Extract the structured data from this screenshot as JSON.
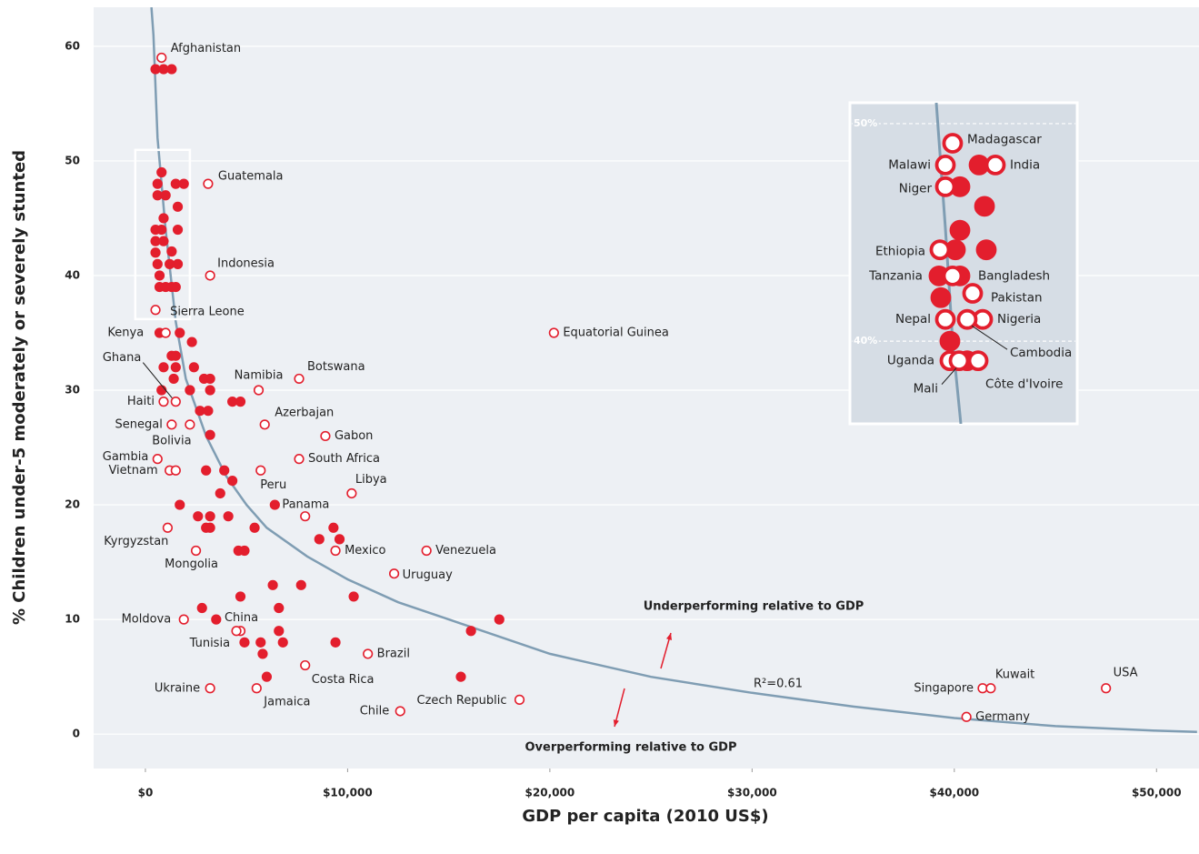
{
  "chart_data": {
    "type": "scatter",
    "xlabel": "GDP per capita (2010 US$)",
    "ylabel": "% Children under-5 moderately or severely stunted",
    "xlim": [
      -2560,
      52100
    ],
    "ylim": [
      -3.0,
      63.4
    ],
    "xticks": [
      {
        "value": 0,
        "label": "$0"
      },
      {
        "value": 10000,
        "label": "$10,000"
      },
      {
        "value": 20000,
        "label": "$20,000"
      },
      {
        "value": 30000,
        "label": "$30,000"
      },
      {
        "value": 40000,
        "label": "$40,000"
      },
      {
        "value": 50000,
        "label": "$50,000"
      }
    ],
    "yticks": [
      0,
      10,
      20,
      30,
      40,
      50,
      60
    ],
    "grid": true,
    "series": [
      {
        "color": "#e31e2d",
        "fill": "#e31e2d",
        "x": [
          6400,
          500,
          900,
          1300,
          800,
          600,
          1500,
          1900,
          600,
          1000,
          1600,
          900,
          500,
          800,
          1600,
          500,
          900,
          1300,
          500,
          600,
          1200,
          1600,
          700,
          700,
          1000,
          1300,
          1500,
          700,
          1700,
          2300,
          1300,
          1500,
          900,
          1500,
          2400,
          1400,
          2900,
          3200,
          800,
          2200,
          3200,
          4300,
          4700,
          2700,
          3100,
          3200,
          3000,
          3900,
          4300,
          3700,
          1700,
          2600,
          3200,
          4100,
          3000,
          3200,
          5400,
          9300,
          8600,
          9600,
          4600,
          4900,
          6300,
          7700,
          4700,
          10300,
          2800,
          6600,
          3500,
          17500,
          6600,
          16100,
          4900,
          5700,
          6800,
          9400,
          5800,
          6000,
          15600
        ],
        "values": [
          20,
          58,
          58,
          58,
          49,
          48,
          48,
          48,
          47,
          47,
          46,
          45,
          44,
          44,
          44,
          43,
          43,
          42.1,
          42,
          41,
          41,
          41,
          40,
          39,
          39,
          39,
          39,
          35,
          35,
          34.2,
          33,
          33,
          32,
          32,
          32,
          31,
          31,
          31,
          30,
          30,
          30,
          29,
          29,
          28.2,
          28.2,
          26.1,
          23,
          23,
          22.1,
          21,
          20,
          19,
          19,
          19,
          18,
          18,
          18,
          18,
          17,
          17,
          16,
          16,
          13,
          13,
          12,
          12,
          11,
          11,
          10,
          10,
          9,
          9,
          8,
          8,
          8,
          8,
          7,
          5,
          5
        ],
        "labels": [
          "Panama",
          null,
          null,
          null,
          null,
          null,
          null,
          null,
          null,
          null,
          null,
          null,
          null,
          null,
          null,
          null,
          null,
          null,
          null,
          null,
          null,
          null,
          null,
          null,
          null,
          null,
          null,
          null,
          null,
          null,
          null,
          null,
          null,
          null,
          null,
          null,
          null,
          null,
          null,
          null,
          null,
          null,
          null,
          null,
          null,
          null,
          null,
          null,
          null,
          null,
          null,
          null,
          null,
          null,
          null,
          null,
          null,
          null,
          null,
          null,
          null,
          null,
          null,
          null,
          null,
          null,
          null,
          null,
          null,
          null,
          null,
          null,
          null,
          null,
          null,
          null,
          null,
          null,
          null
        ]
      },
      {
        "color": "#e31e2d",
        "fill": "#ffffff",
        "x": [
          800,
          3100,
          3200,
          500,
          1000,
          20200,
          7600,
          5600,
          1500,
          900,
          5900,
          1300,
          2200,
          8900,
          7600,
          600,
          1200,
          1500,
          5700,
          10200,
          7900,
          1100,
          2500,
          9400,
          13900,
          12300,
          1900,
          4700,
          4500,
          11000,
          7900,
          3200,
          5500,
          12600,
          18500,
          41400,
          41800,
          47500,
          40600
        ],
        "values": [
          59,
          48,
          40,
          37,
          35,
          35,
          31,
          30,
          29,
          29,
          27,
          27,
          27,
          26,
          24,
          24,
          23,
          23,
          23,
          21,
          19,
          18,
          16,
          16,
          16,
          14,
          10,
          9,
          9,
          7,
          6,
          4,
          4,
          2,
          3,
          4,
          4,
          4,
          1.5
        ],
        "labels": [
          "Afghanistan",
          "Guatemala",
          "Indonesia",
          "Sierra Leone",
          "Kenya",
          "Equatorial Guinea",
          "Botswana",
          "Namibia",
          "Ghana",
          "Haiti",
          "Azerbajan",
          "Senegal",
          "Bolivia",
          "Gabon",
          "South Africa",
          "Gambia",
          "Vietnam",
          null,
          "Peru",
          "Libya",
          null,
          "Kyrgyzstan",
          "Mongolia",
          "Mexico",
          "Venezuela",
          "Uruguay",
          "Moldova",
          "China",
          "Tunisia",
          "Brazil",
          "Costa Rica",
          "Ukraine",
          "Jamaica",
          "Chile",
          "Czech Republic",
          "Singapore",
          "Kuwait",
          "USA",
          "Germany"
        ]
      }
    ],
    "fit": {
      "color": "#7f9db3",
      "x": [
        300,
        400,
        600,
        1000,
        1500,
        2000,
        3000,
        4000,
        5000,
        6000,
        8000,
        10000,
        12500,
        15000,
        20000,
        25000,
        30000,
        35000,
        40000,
        45000,
        50000,
        52000
      ],
      "values": [
        63.4,
        61,
        52,
        44,
        36,
        31,
        26,
        22.5,
        20,
        18,
        15.5,
        13.5,
        11.5,
        10,
        7,
        5,
        3.6,
        2.4,
        1.4,
        0.7,
        0.3,
        0.2
      ]
    },
    "annotations": [
      "Underperforming relative to GDP",
      "Overperforming relative to GDP",
      "R²=0.61"
    ],
    "inset": {
      "xlim": [
        -500,
        2200
      ],
      "ylim": [
        36.2,
        50.96
      ],
      "yticks": [
        {
          "value": 50,
          "label": "50%"
        },
        {
          "value": 40,
          "label": "40%"
        }
      ],
      "fit": {
        "x": [
          526,
          634,
          720,
          818
        ],
        "values": [
          50.96,
          45.2,
          40,
          36.2
        ]
      },
      "series": [
        {
          "color": "#e31e2d",
          "fill": "#e31e2d",
          "x": [
            1034,
            807,
            1099,
            807,
            753,
            1120,
            558,
            807,
            580,
            688,
            893
          ],
          "values": [
            48.1,
            47.1,
            46.2,
            45.1,
            44.2,
            44.2,
            43.0,
            43.0,
            42.0,
            40.0,
            39.1
          ],
          "labels": [
            null,
            null,
            null,
            null,
            null,
            null,
            "Tanzania",
            null,
            null,
            null,
            null
          ]
        },
        {
          "color": "#e31e2d",
          "fill": "#ffffff",
          "x": [
            720,
            634,
            1228,
            634,
            569,
            720,
            958,
            634,
            1077,
            893,
            688,
            796,
            1023
          ],
          "values": [
            49.1,
            48.1,
            48.1,
            47.1,
            44.2,
            43.0,
            42.2,
            41.0,
            41.0,
            41.0,
            39.1,
            39.1,
            39.1
          ],
          "labels": [
            "Madagascar",
            "Malawi",
            "India",
            "Niger",
            "Ethiopia",
            "Bangladesh",
            "Pakistan",
            "Nepal",
            "Nigeria",
            "Cambodia",
            "Uganda",
            "Mali",
            "Côte d'Ivoire"
          ]
        }
      ]
    }
  }
}
